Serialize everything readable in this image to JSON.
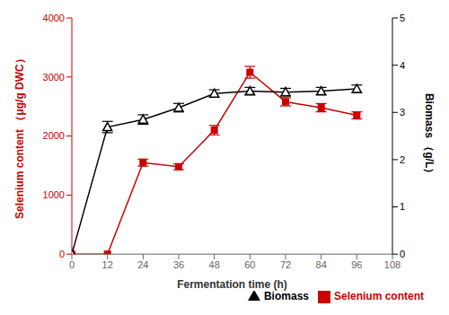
{
  "chart_data": {
    "type": "line",
    "x": [
      0,
      12,
      24,
      36,
      48,
      60,
      72,
      84,
      96
    ],
    "xlabel": "Fermentation time (h)",
    "ylabel": "Selenium content （μg/g DWC）",
    "y2label": "Biomass （g/L）",
    "xlim": [
      0,
      108
    ],
    "xticks": [
      0,
      12,
      24,
      36,
      48,
      60,
      72,
      84,
      96,
      108
    ],
    "ylim": [
      0,
      4000
    ],
    "yticks": [
      0,
      1000,
      2000,
      3000,
      4000
    ],
    "y2lim": [
      0,
      5
    ],
    "y2ticks": [
      0,
      1,
      2,
      3,
      4,
      5
    ],
    "grid": false,
    "legend": "lower right",
    "series": [
      {
        "name": "Selenium content",
        "color": "#cc0000",
        "marker": "square",
        "axis": "y",
        "values": [
          0,
          0,
          1550,
          1480,
          2100,
          3080,
          2580,
          2480,
          2350
        ],
        "errors": [
          0,
          0,
          60,
          50,
          80,
          100,
          70,
          70,
          60
        ]
      },
      {
        "name": "Biomass",
        "color": "#000000",
        "marker": "triangle",
        "axis": "y2",
        "values": [
          0,
          2.69,
          2.85,
          3.1,
          3.4,
          3.45,
          3.43,
          3.45,
          3.5
        ],
        "errors": [
          0,
          0.12,
          0.1,
          0.09,
          0.08,
          0.08,
          0.08,
          0.08,
          0.08
        ]
      }
    ]
  }
}
